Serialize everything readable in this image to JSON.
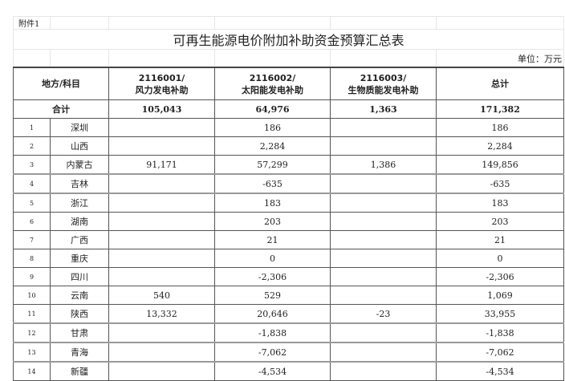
{
  "attachment": "附件1",
  "title": "可再生能源电价附加补助资金预算汇总表",
  "unit": "单位：万元",
  "headers": {
    "region": "地方/科目",
    "wind_code": "2116001/",
    "wind": "风力发电补助",
    "solar_code": "2116002/",
    "solar": "太阳能发电补助",
    "bio_code": "2116003/",
    "bio": "生物质能发电补助",
    "total": "总计"
  },
  "total_row": {
    "label": "合计",
    "wind": "105,043",
    "solar": "64,976",
    "bio": "1,363",
    "total": "171,382"
  },
  "rows": [
    {
      "no": "1",
      "region": "深圳",
      "wind": "",
      "solar": "186",
      "bio": "",
      "total": "186"
    },
    {
      "no": "2",
      "region": "山西",
      "wind": "",
      "solar": "2,284",
      "bio": "",
      "total": "2,284"
    },
    {
      "no": "3",
      "region": "内蒙古",
      "wind": "91,171",
      "solar": "57,299",
      "bio": "1,386",
      "total": "149,856"
    },
    {
      "no": "4",
      "region": "吉林",
      "wind": "",
      "solar": "-635",
      "bio": "",
      "total": "-635"
    },
    {
      "no": "5",
      "region": "浙江",
      "wind": "",
      "solar": "183",
      "bio": "",
      "total": "183"
    },
    {
      "no": "6",
      "region": "湖南",
      "wind": "",
      "solar": "203",
      "bio": "",
      "total": "203"
    },
    {
      "no": "7",
      "region": "广西",
      "wind": "",
      "solar": "21",
      "bio": "",
      "total": "21"
    },
    {
      "no": "8",
      "region": "重庆",
      "wind": "",
      "solar": "0",
      "bio": "",
      "total": "0"
    },
    {
      "no": "9",
      "region": "四川",
      "wind": "",
      "solar": "-2,306",
      "bio": "",
      "total": "-2,306"
    },
    {
      "no": "10",
      "region": "云南",
      "wind": "540",
      "solar": "529",
      "bio": "",
      "total": "1,069"
    },
    {
      "no": "11",
      "region": "陕西",
      "wind": "13,332",
      "solar": "20,646",
      "bio": "-23",
      "total": "33,955"
    },
    {
      "no": "12",
      "region": "甘肃",
      "wind": "",
      "solar": "-1,838",
      "bio": "",
      "total": "-1,838"
    },
    {
      "no": "13",
      "region": "青海",
      "wind": "",
      "solar": "-7,062",
      "bio": "",
      "total": "-7,062"
    },
    {
      "no": "14",
      "region": "新疆",
      "wind": "",
      "solar": "-4,534",
      "bio": "",
      "total": "-4,534"
    }
  ]
}
